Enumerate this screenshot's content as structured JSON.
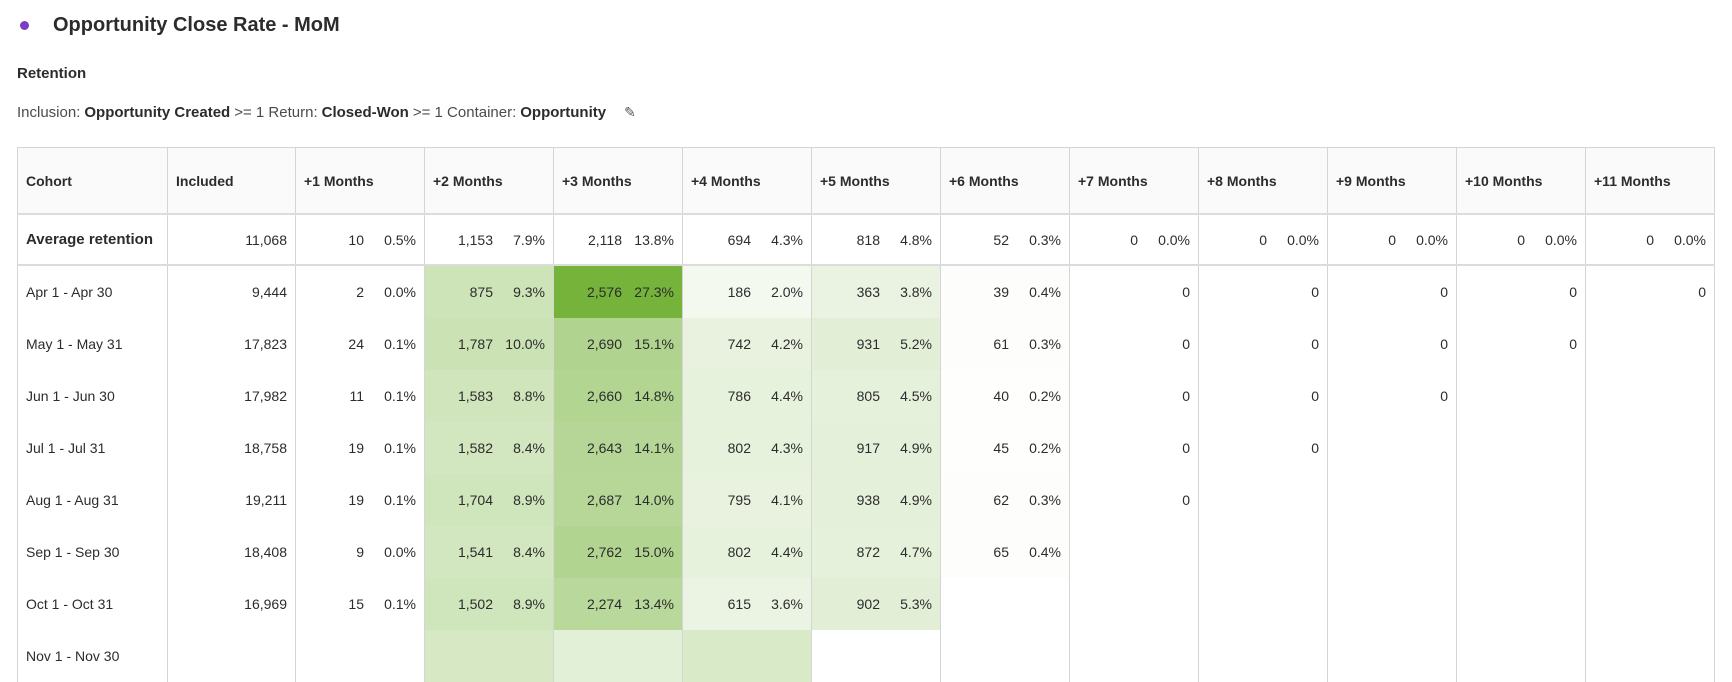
{
  "header": {
    "title": "Opportunity Close Rate - MoM",
    "dot_color": "#7b3fc4"
  },
  "panel": {
    "subtitle": "Retention",
    "criteria": {
      "inclusion_label": "Inclusion:",
      "inclusion_metric": "Opportunity Created",
      "inclusion_cond": ">= 1",
      "return_label": "Return:",
      "return_metric": "Closed-Won",
      "return_cond": ">= 1",
      "container_label": "Container:",
      "container_value": "Opportunity",
      "edit_icon": "pencil-icon"
    }
  },
  "colors": {
    "heat_max": "#75b33b",
    "border": "#d5d5d5",
    "header_bg": "#fafafa"
  },
  "table": {
    "columns": [
      "Cohort",
      "Included",
      "+1 Months",
      "+2 Months",
      "+3 Months",
      "+4 Months",
      "+5 Months",
      "+6 Months",
      "+7 Months",
      "+8 Months",
      "+9 Months",
      "+10 Months",
      "+11 Months"
    ],
    "average": {
      "label": "Average retention",
      "included": "11,068",
      "cells": [
        [
          "10",
          "0.5%"
        ],
        [
          "1,153",
          "7.9%"
        ],
        [
          "2,118",
          "13.8%"
        ],
        [
          "694",
          "4.3%"
        ],
        [
          "818",
          "4.8%"
        ],
        [
          "52",
          "0.3%"
        ],
        [
          "0",
          "0.0%"
        ],
        [
          "0",
          "0.0%"
        ],
        [
          "0",
          "0.0%"
        ],
        [
          "0",
          "0.0%"
        ],
        [
          "0",
          "0.0%"
        ]
      ]
    },
    "rows": [
      {
        "label": "Apr 1 - Apr 30",
        "included": "9,444",
        "cells": [
          [
            "2",
            "0.0%"
          ],
          [
            "875",
            "9.3%"
          ],
          [
            "2,576",
            "27.3%"
          ],
          [
            "186",
            "2.0%"
          ],
          [
            "363",
            "3.8%"
          ],
          [
            "39",
            "0.4%"
          ],
          [
            "0",
            ""
          ],
          [
            "0",
            ""
          ],
          [
            "0",
            ""
          ],
          [
            "0",
            ""
          ],
          [
            "0",
            ""
          ]
        ]
      },
      {
        "label": "May 1 - May 31",
        "included": "17,823",
        "cells": [
          [
            "24",
            "0.1%"
          ],
          [
            "1,787",
            "10.0%"
          ],
          [
            "2,690",
            "15.1%"
          ],
          [
            "742",
            "4.2%"
          ],
          [
            "931",
            "5.2%"
          ],
          [
            "61",
            "0.3%"
          ],
          [
            "0",
            ""
          ],
          [
            "0",
            ""
          ],
          [
            "0",
            ""
          ],
          [
            "0",
            ""
          ]
        ]
      },
      {
        "label": "Jun 1 - Jun 30",
        "included": "17,982",
        "cells": [
          [
            "11",
            "0.1%"
          ],
          [
            "1,583",
            "8.8%"
          ],
          [
            "2,660",
            "14.8%"
          ],
          [
            "786",
            "4.4%"
          ],
          [
            "805",
            "4.5%"
          ],
          [
            "40",
            "0.2%"
          ],
          [
            "0",
            ""
          ],
          [
            "0",
            ""
          ],
          [
            "0",
            ""
          ]
        ]
      },
      {
        "label": "Jul 1 - Jul 31",
        "included": "18,758",
        "cells": [
          [
            "19",
            "0.1%"
          ],
          [
            "1,582",
            "8.4%"
          ],
          [
            "2,643",
            "14.1%"
          ],
          [
            "802",
            "4.3%"
          ],
          [
            "917",
            "4.9%"
          ],
          [
            "45",
            "0.2%"
          ],
          [
            "0",
            ""
          ],
          [
            "0",
            ""
          ]
        ]
      },
      {
        "label": "Aug 1 - Aug 31",
        "included": "19,211",
        "cells": [
          [
            "19",
            "0.1%"
          ],
          [
            "1,704",
            "8.9%"
          ],
          [
            "2,687",
            "14.0%"
          ],
          [
            "795",
            "4.1%"
          ],
          [
            "938",
            "4.9%"
          ],
          [
            "62",
            "0.3%"
          ],
          [
            "0",
            ""
          ]
        ]
      },
      {
        "label": "Sep 1 - Sep 30",
        "included": "18,408",
        "cells": [
          [
            "9",
            "0.0%"
          ],
          [
            "1,541",
            "8.4%"
          ],
          [
            "2,762",
            "15.0%"
          ],
          [
            "802",
            "4.4%"
          ],
          [
            "872",
            "4.7%"
          ],
          [
            "65",
            "0.4%"
          ]
        ]
      },
      {
        "label": "Oct 1 - Oct 31",
        "included": "16,969",
        "cells": [
          [
            "15",
            "0.1%"
          ],
          [
            "1,502",
            "8.9%"
          ],
          [
            "2,274",
            "13.4%"
          ],
          [
            "615",
            "3.6%"
          ],
          [
            "902",
            "5.3%"
          ]
        ]
      },
      {
        "label": "Nov 1 - Nov 30",
        "included": "",
        "cells": [
          [
            "",
            ""
          ],
          [
            "",
            ""
          ],
          [
            "",
            ""
          ],
          [
            "",
            ""
          ]
        ],
        "heat": [
          0,
          0.3,
          0.2,
          0.28
        ]
      }
    ]
  }
}
